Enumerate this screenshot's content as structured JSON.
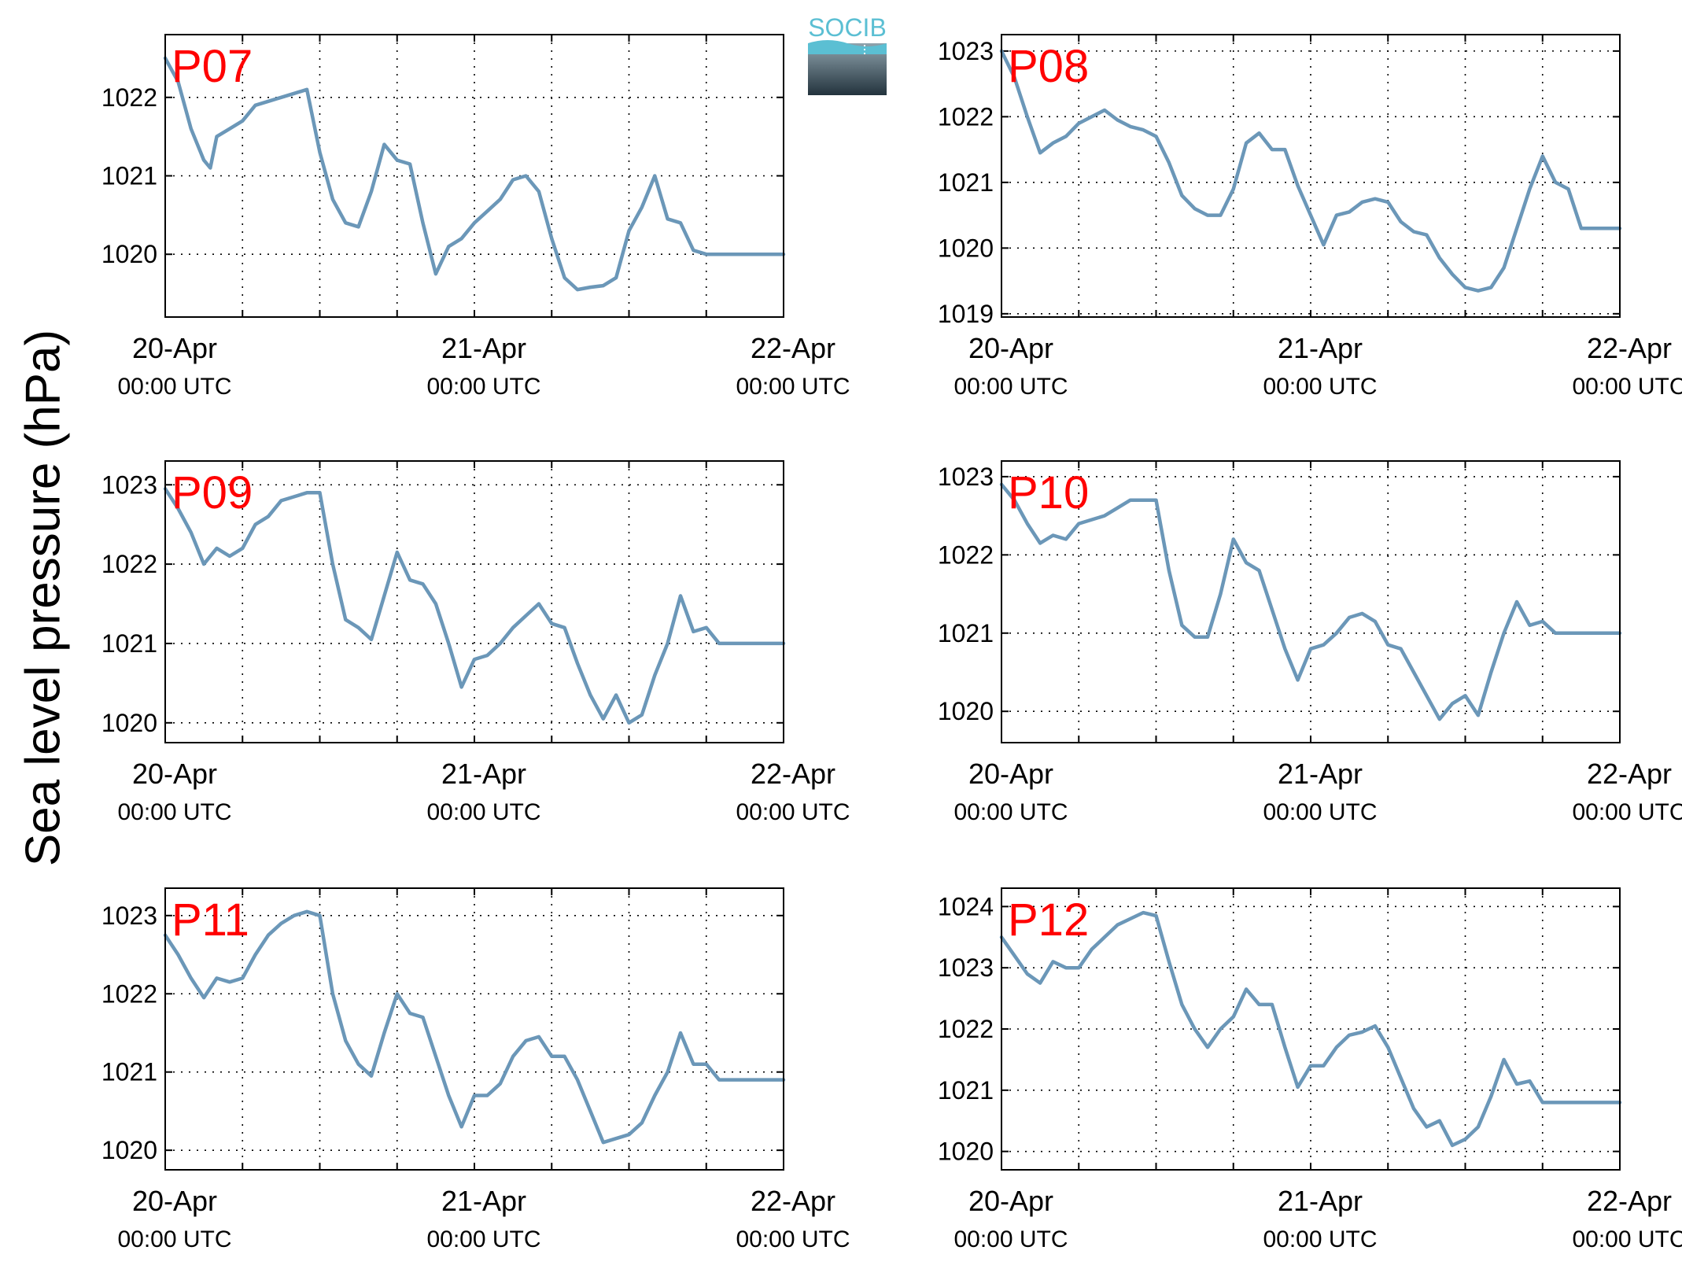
{
  "ylabel": "Sea level pressure (hPa)",
  "logo_text": "SOCIB",
  "x_tick_labels": [
    "20-Apr",
    "21-Apr",
    "22-Apr"
  ],
  "x_tick_sublabels": [
    "00:00 UTC",
    "00:00 UTC",
    "00:00 UTC"
  ],
  "colors": {
    "line": "#6b97b8",
    "label": "#ff0000"
  },
  "chart_data": [
    {
      "type": "line",
      "name": "P07",
      "x_range_hours": [
        0,
        48
      ],
      "ylim": [
        1019.2,
        1022.8
      ],
      "yticks": [
        1020,
        1021,
        1022
      ],
      "x": [
        0,
        1,
        2,
        3,
        3.5,
        4,
        5,
        6,
        7,
        8,
        9,
        10,
        11,
        12,
        13,
        14,
        15,
        16,
        17,
        18,
        19,
        20,
        21,
        22,
        23,
        24,
        25,
        26,
        27,
        28,
        29,
        30,
        31,
        32,
        33,
        34,
        35,
        36,
        37,
        38,
        39,
        40,
        41,
        42,
        43,
        44,
        45,
        46,
        47,
        48
      ],
      "values": [
        1022.5,
        1022.2,
        1021.6,
        1021.2,
        1021.1,
        1021.5,
        1021.6,
        1021.7,
        1021.9,
        1021.95,
        1022.0,
        1022.05,
        1022.1,
        1021.3,
        1020.7,
        1020.4,
        1020.35,
        1020.8,
        1021.4,
        1021.2,
        1021.15,
        1020.4,
        1019.75,
        1020.1,
        1020.2,
        1020.4,
        1020.55,
        1020.7,
        1020.95,
        1021.0,
        1020.8,
        1020.2,
        1019.7,
        1019.55,
        1019.58,
        1019.6,
        1019.7,
        1020.3,
        1020.6,
        1021.0,
        1020.45,
        1020.4,
        1020.05,
        1020.0,
        1020.0,
        1020.0,
        1020.0,
        1020.0,
        1020.0,
        1020.0
      ]
    },
    {
      "type": "line",
      "name": "P08",
      "x_range_hours": [
        0,
        48
      ],
      "ylim": [
        1018.95,
        1023.25
      ],
      "yticks": [
        1019,
        1020,
        1021,
        1022,
        1023
      ],
      "x": [
        0,
        1,
        2,
        3,
        4,
        5,
        6,
        7,
        8,
        9,
        10,
        11,
        12,
        13,
        14,
        15,
        16,
        17,
        18,
        19,
        20,
        21,
        22,
        23,
        24,
        25,
        26,
        27,
        28,
        29,
        30,
        31,
        32,
        33,
        34,
        35,
        36,
        37,
        38,
        39,
        40,
        41,
        42,
        43,
        44,
        45,
        46,
        47,
        48
      ],
      "values": [
        1023.0,
        1022.6,
        1022.0,
        1021.45,
        1021.6,
        1021.7,
        1021.9,
        1022.0,
        1022.1,
        1021.95,
        1021.85,
        1021.8,
        1021.7,
        1021.3,
        1020.8,
        1020.6,
        1020.5,
        1020.5,
        1020.9,
        1021.6,
        1021.75,
        1021.5,
        1021.5,
        1020.95,
        1020.5,
        1020.05,
        1020.5,
        1020.55,
        1020.7,
        1020.75,
        1020.7,
        1020.4,
        1020.25,
        1020.2,
        1019.85,
        1019.6,
        1019.4,
        1019.35,
        1019.4,
        1019.7,
        1020.3,
        1020.9,
        1021.4,
        1021.0,
        1020.9,
        1020.3,
        1020.3,
        1020.3,
        1020.3
      ]
    },
    {
      "type": "line",
      "name": "P09",
      "x_range_hours": [
        0,
        48
      ],
      "ylim": [
        1019.75,
        1023.3
      ],
      "yticks": [
        1020,
        1021,
        1022,
        1023
      ],
      "x": [
        0,
        1,
        2,
        3,
        4,
        5,
        6,
        7,
        8,
        9,
        10,
        11,
        12,
        13,
        14,
        15,
        16,
        17,
        18,
        19,
        20,
        21,
        22,
        23,
        24,
        25,
        26,
        27,
        28,
        29,
        30,
        31,
        32,
        33,
        34,
        35,
        36,
        37,
        38,
        39,
        40,
        41,
        42,
        43,
        44,
        45,
        46,
        47,
        48
      ],
      "values": [
        1022.95,
        1022.7,
        1022.4,
        1022.0,
        1022.2,
        1022.1,
        1022.2,
        1022.5,
        1022.6,
        1022.8,
        1022.85,
        1022.9,
        1022.9,
        1022.0,
        1021.3,
        1021.2,
        1021.05,
        1021.6,
        1022.15,
        1021.8,
        1021.75,
        1021.5,
        1021.0,
        1020.45,
        1020.8,
        1020.85,
        1021.0,
        1021.2,
        1021.35,
        1021.5,
        1021.25,
        1021.2,
        1020.75,
        1020.35,
        1020.05,
        1020.35,
        1020.0,
        1020.1,
        1020.6,
        1021.0,
        1021.6,
        1021.15,
        1021.2,
        1021.0,
        1021.0,
        1021.0,
        1021.0,
        1021.0,
        1021.0
      ]
    },
    {
      "type": "line",
      "name": "P10",
      "x_range_hours": [
        0,
        48
      ],
      "ylim": [
        1019.6,
        1023.2
      ],
      "yticks": [
        1020,
        1021,
        1022,
        1023
      ],
      "x": [
        0,
        1,
        2,
        3,
        4,
        5,
        6,
        7,
        8,
        9,
        10,
        11,
        12,
        13,
        14,
        15,
        16,
        17,
        18,
        19,
        20,
        21,
        22,
        23,
        24,
        25,
        26,
        27,
        28,
        29,
        30,
        31,
        32,
        33,
        34,
        35,
        36,
        37,
        38,
        39,
        40,
        41,
        42,
        43,
        44,
        45,
        46,
        47,
        48
      ],
      "values": [
        1022.9,
        1022.7,
        1022.4,
        1022.15,
        1022.25,
        1022.2,
        1022.4,
        1022.45,
        1022.5,
        1022.6,
        1022.7,
        1022.7,
        1022.7,
        1021.8,
        1021.1,
        1020.95,
        1020.95,
        1021.5,
        1022.2,
        1021.9,
        1021.8,
        1021.3,
        1020.8,
        1020.4,
        1020.8,
        1020.85,
        1021.0,
        1021.2,
        1021.25,
        1021.15,
        1020.85,
        1020.8,
        1020.5,
        1020.2,
        1019.9,
        1020.1,
        1020.2,
        1019.95,
        1020.5,
        1021.0,
        1021.4,
        1021.1,
        1021.15,
        1021.0,
        1021.0,
        1021.0,
        1021.0,
        1021.0,
        1021.0
      ]
    },
    {
      "type": "line",
      "name": "P11",
      "x_range_hours": [
        0,
        48
      ],
      "ylim": [
        1019.75,
        1023.35
      ],
      "yticks": [
        1020,
        1021,
        1022,
        1023
      ],
      "x": [
        0,
        1,
        2,
        3,
        4,
        5,
        6,
        7,
        8,
        9,
        10,
        11,
        12,
        13,
        14,
        15,
        16,
        17,
        18,
        19,
        20,
        21,
        22,
        23,
        24,
        25,
        26,
        27,
        28,
        29,
        30,
        31,
        32,
        33,
        34,
        35,
        36,
        37,
        38,
        39,
        40,
        41,
        42,
        43,
        44,
        45,
        46,
        47,
        48
      ],
      "values": [
        1022.75,
        1022.5,
        1022.2,
        1021.95,
        1022.2,
        1022.15,
        1022.2,
        1022.5,
        1022.75,
        1022.9,
        1023.0,
        1023.05,
        1023.0,
        1022.0,
        1021.4,
        1021.1,
        1020.95,
        1021.5,
        1022.0,
        1021.75,
        1021.7,
        1021.2,
        1020.7,
        1020.3,
        1020.7,
        1020.7,
        1020.85,
        1021.2,
        1021.4,
        1021.45,
        1021.2,
        1021.2,
        1020.9,
        1020.5,
        1020.1,
        1020.15,
        1020.2,
        1020.35,
        1020.7,
        1021.0,
        1021.5,
        1021.1,
        1021.1,
        1020.9,
        1020.9,
        1020.9,
        1020.9,
        1020.9,
        1020.9
      ]
    },
    {
      "type": "line",
      "name": "P12",
      "x_range_hours": [
        0,
        48
      ],
      "ylim": [
        1019.7,
        1024.3
      ],
      "yticks": [
        1020,
        1021,
        1022,
        1023,
        1024
      ],
      "x": [
        0,
        1,
        2,
        3,
        4,
        5,
        6,
        7,
        8,
        9,
        10,
        11,
        12,
        13,
        14,
        15,
        16,
        17,
        18,
        19,
        20,
        21,
        22,
        23,
        24,
        25,
        26,
        27,
        28,
        29,
        30,
        31,
        32,
        33,
        34,
        35,
        36,
        37,
        38,
        39,
        40,
        41,
        42,
        43,
        44,
        45,
        46,
        47,
        48
      ],
      "values": [
        1023.5,
        1023.2,
        1022.9,
        1022.75,
        1023.1,
        1023.0,
        1023.0,
        1023.3,
        1023.5,
        1023.7,
        1023.8,
        1023.9,
        1023.85,
        1023.1,
        1022.4,
        1022.0,
        1021.7,
        1022.0,
        1022.2,
        1022.65,
        1022.4,
        1022.4,
        1021.7,
        1021.05,
        1021.4,
        1021.4,
        1021.7,
        1021.9,
        1021.95,
        1022.05,
        1021.7,
        1021.2,
        1020.7,
        1020.4,
        1020.5,
        1020.1,
        1020.2,
        1020.4,
        1020.9,
        1021.5,
        1021.1,
        1021.15,
        1020.8,
        1020.8,
        1020.8,
        1020.8,
        1020.8,
        1020.8,
        1020.8
      ]
    }
  ]
}
